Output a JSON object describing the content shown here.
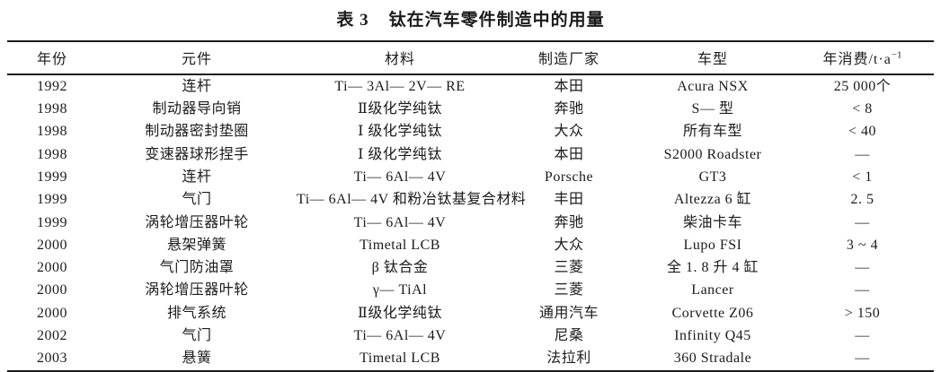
{
  "title": {
    "label": "表 3",
    "text": "钛在汽车零件制造中的用量"
  },
  "table": {
    "columns": [
      "年份",
      "元件",
      "材料",
      "制造厂家",
      "车型"
    ],
    "consumption_header": {
      "text": "年消费/t·a",
      "sup": "−1"
    },
    "rows": [
      {
        "year": "1992",
        "component": "连杆",
        "material": "Ti— 3Al— 2V— RE",
        "manufacturer": "本田",
        "model": "Acura NSX",
        "consumption": "25 000个"
      },
      {
        "year": "1998",
        "component": "制动器导向销",
        "material": "Ⅱ级化学纯钛",
        "manufacturer": "奔驰",
        "model": "S— 型",
        "consumption": "< 8"
      },
      {
        "year": "1998",
        "component": "制动器密封垫圈",
        "material": "Ⅰ 级化学纯钛",
        "manufacturer": "大众",
        "model": "所有车型",
        "consumption": "< 40"
      },
      {
        "year": "1998",
        "component": "变速器球形捏手",
        "material": "Ⅰ 级化学纯钛",
        "manufacturer": "本田",
        "model": "S2000 Roadster",
        "consumption": "—"
      },
      {
        "year": "1999",
        "component": "连杆",
        "material": "Ti— 6Al— 4V",
        "manufacturer": "Porsche",
        "model": "GT3",
        "consumption": "< 1"
      },
      {
        "year": "1999",
        "component": "气门",
        "material": "Ti— 6Al— 4V 和粉冶钛基复合材料",
        "manufacturer": "丰田",
        "model": "Altezza 6 缸",
        "consumption": "2. 5"
      },
      {
        "year": "1999",
        "component": "涡轮增压器叶轮",
        "material": "Ti— 6Al— 4V",
        "manufacturer": "奔驰",
        "model": "柴油卡车",
        "consumption": "—"
      },
      {
        "year": "2000",
        "component": "悬架弹簧",
        "material": "Timetal LCB",
        "manufacturer": "大众",
        "model": "Lupo FSI",
        "consumption": "3 ~ 4"
      },
      {
        "year": "2000",
        "component": "气门防油罩",
        "material": "β 钛合金",
        "manufacturer": "三菱",
        "model": "全 1. 8 升 4 缸",
        "consumption": "—"
      },
      {
        "year": "2000",
        "component": "涡轮增压器叶轮",
        "material": "γ— TiAl",
        "manufacturer": "三菱",
        "model": "Lancer",
        "consumption": "—"
      },
      {
        "year": "2000",
        "component": "排气系统",
        "material": "Ⅱ级化学纯钛",
        "manufacturer": "通用汽车",
        "model": "Corvette Z06",
        "consumption": "> 150"
      },
      {
        "year": "2002",
        "component": "气门",
        "material": "Ti— 6Al— 4V",
        "manufacturer": "尼桑",
        "model": "Infinity Q45",
        "consumption": "—"
      },
      {
        "year": "2003",
        "component": "悬簧",
        "material": "Timetal LCB",
        "manufacturer": "法拉利",
        "model": "360 Stradale",
        "consumption": "—"
      }
    ]
  }
}
